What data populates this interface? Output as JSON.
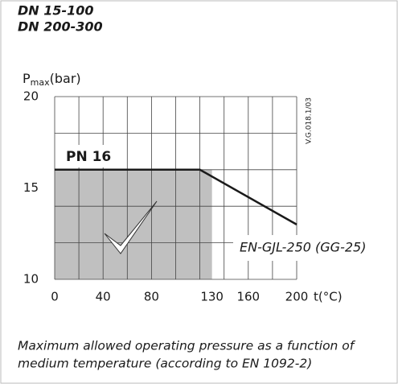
{
  "chart_data": {
    "type": "line",
    "title": [
      "DN 15-100",
      "DN 200-300"
    ],
    "ylabel": {
      "base": "P",
      "sub": "max",
      "unit": "(bar)"
    },
    "xlabel": "t(°C)",
    "x": [
      0,
      120,
      200
    ],
    "series": [
      {
        "name": "EN-GJL-250 (GG-25)",
        "color": "#1a1a1a",
        "values": [
          16,
          16,
          13
        ]
      }
    ],
    "pn_label": "PN 16",
    "code": "V.G.018.1/03",
    "shaded_region": {
      "x": [
        0,
        130
      ],
      "y": [
        10,
        16
      ],
      "color": "#c0c0c0"
    },
    "xlim": [
      0,
      200
    ],
    "ylim": [
      10,
      20
    ],
    "xticks": [
      0,
      40,
      80,
      130,
      160,
      200
    ],
    "yticks": [
      10,
      15,
      20
    ],
    "xgrid": [
      0,
      20,
      40,
      60,
      80,
      100,
      120,
      140,
      160,
      180,
      200
    ],
    "ygrid": [
      10,
      12,
      14,
      16,
      18,
      20
    ],
    "caption": [
      "Maximum allowed operating pressure as a function of",
      "medium temperature (according to  EN 1092-2)"
    ]
  }
}
